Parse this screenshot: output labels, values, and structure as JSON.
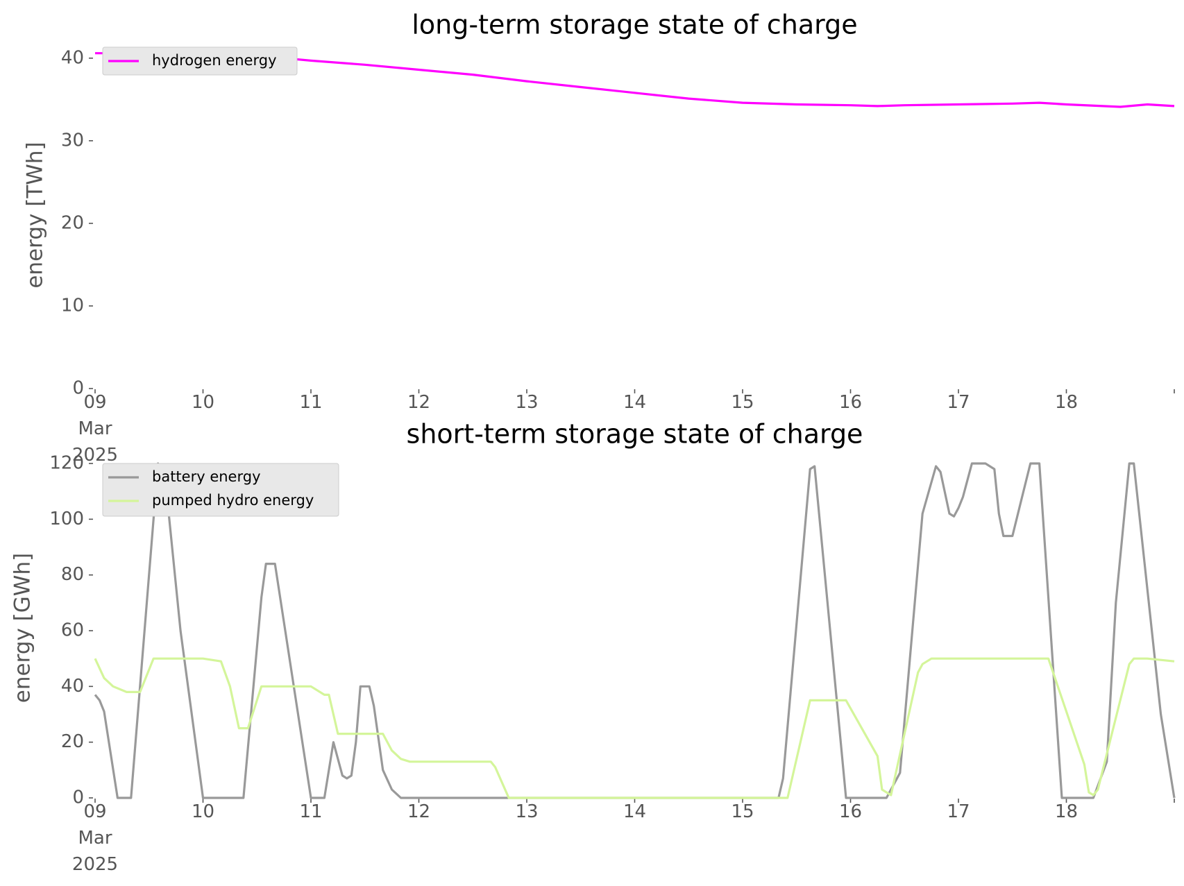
{
  "chart_data": [
    {
      "type": "line",
      "title": "long-term storage state of charge",
      "xlabel": "",
      "ylabel": "energy [TWh]",
      "xlim": [
        "2025-03-09T00:00",
        "2025-03-19T00:00"
      ],
      "ylim": [
        0,
        42
      ],
      "yticks": [
        0,
        10,
        20,
        30,
        40
      ],
      "xtick_labels": [
        "09\nMar\n2025",
        "10",
        "11",
        "12",
        "13",
        "14",
        "15",
        "16",
        "17",
        "18"
      ],
      "grid": false,
      "legend_position": "upper-left",
      "series": [
        {
          "name": "hydrogen energy",
          "color": "#ff00ff",
          "x": [
            "2025-03-09T00:00",
            "2025-03-09T12:00",
            "2025-03-10T00:00",
            "2025-03-10T12:00",
            "2025-03-11T00:00",
            "2025-03-11T12:00",
            "2025-03-12T00:00",
            "2025-03-12T12:00",
            "2025-03-13T00:00",
            "2025-03-13T12:00",
            "2025-03-14T00:00",
            "2025-03-14T12:00",
            "2025-03-15T00:00",
            "2025-03-15T12:00",
            "2025-03-16T00:00",
            "2025-03-16T06:00",
            "2025-03-16T12:00",
            "2025-03-17T00:00",
            "2025-03-17T12:00",
            "2025-03-17T18:00",
            "2025-03-18T00:00",
            "2025-03-18T12:00",
            "2025-03-18T18:00",
            "2025-03-19T00:00"
          ],
          "values": [
            40.6,
            40.6,
            40.6,
            40.3,
            39.7,
            39.2,
            38.6,
            38.0,
            37.2,
            36.5,
            35.8,
            35.1,
            34.6,
            34.4,
            34.3,
            34.2,
            34.3,
            34.4,
            34.5,
            34.6,
            34.4,
            34.1,
            34.4,
            34.2
          ]
        }
      ]
    },
    {
      "type": "line",
      "title": "short-term storage state of charge",
      "xlabel": "",
      "ylabel": "energy [GWh]",
      "xlim": [
        "2025-03-09T00:00",
        "2025-03-19T00:00"
      ],
      "ylim": [
        0,
        122
      ],
      "yticks": [
        0,
        20,
        40,
        60,
        80,
        100,
        120
      ],
      "xtick_labels": [
        "09\nMar\n2025",
        "10",
        "11",
        "12",
        "13",
        "14",
        "15",
        "16",
        "17",
        "18"
      ],
      "grid": false,
      "legend_position": "upper-left",
      "series": [
        {
          "name": "battery energy",
          "color": "#999999",
          "x": [
            "2025-03-09T00:00",
            "2025-03-09T01:00",
            "2025-03-09T02:00",
            "2025-03-09T05:00",
            "2025-03-09T08:00",
            "2025-03-09T14:00",
            "2025-03-09T16:00",
            "2025-03-09T19:00",
            "2025-03-10T00:00",
            "2025-03-10T09:00",
            "2025-03-10T13:00",
            "2025-03-10T14:00",
            "2025-03-10T16:00",
            "2025-03-11T00:00",
            "2025-03-11T03:00",
            "2025-03-11T05:00",
            "2025-03-11T07:00",
            "2025-03-11T08:00",
            "2025-03-11T09:00",
            "2025-03-11T10:00",
            "2025-03-11T11:00",
            "2025-03-11T13:00",
            "2025-03-11T14:00",
            "2025-03-11T16:00",
            "2025-03-11T18:00",
            "2025-03-11T20:00",
            "2025-03-11T22:00",
            "2025-03-12T00:00",
            "2025-03-15T08:00",
            "2025-03-15T09:00",
            "2025-03-15T15:00",
            "2025-03-15T16:00",
            "2025-03-15T23:00",
            "2025-03-16T08:00",
            "2025-03-16T11:00",
            "2025-03-16T16:00",
            "2025-03-16T19:00",
            "2025-03-16T20:00",
            "2025-03-16T22:00",
            "2025-03-16T23:00",
            "2025-03-17T00:00",
            "2025-03-17T01:00",
            "2025-03-17T03:00",
            "2025-03-17T04:00",
            "2025-03-17T06:00",
            "2025-03-17T08:00",
            "2025-03-17T09:00",
            "2025-03-17T10:00",
            "2025-03-17T12:00",
            "2025-03-17T14:00",
            "2025-03-17T16:00",
            "2025-03-17T18:00",
            "2025-03-17T23:00",
            "2025-03-18T01:00",
            "2025-03-18T06:00",
            "2025-03-18T09:00",
            "2025-03-18T11:00",
            "2025-03-18T14:00",
            "2025-03-18T15:00",
            "2025-03-18T21:00",
            "2025-03-19T00:00"
          ],
          "values": [
            37,
            35,
            31,
            0,
            0,
            120,
            108,
            60,
            0,
            0,
            72,
            84,
            84,
            0,
            0,
            20,
            8,
            7,
            8,
            20,
            40,
            40,
            33,
            10,
            3,
            0,
            0,
            0,
            0,
            7,
            118,
            119,
            0,
            0,
            9,
            102,
            119,
            117,
            102,
            101,
            104,
            108,
            120,
            120,
            120,
            118,
            102,
            94,
            94,
            107,
            120,
            120,
            0,
            0,
            0,
            13,
            70,
            120,
            120,
            30,
            0
          ]
        },
        {
          "name": "pumped hydro energy",
          "color": "#d4f59a",
          "x": [
            "2025-03-09T00:00",
            "2025-03-09T02:00",
            "2025-03-09T04:00",
            "2025-03-09T07:00",
            "2025-03-09T10:00",
            "2025-03-09T13:00",
            "2025-03-10T00:00",
            "2025-03-10T04:00",
            "2025-03-10T06:00",
            "2025-03-10T08:00",
            "2025-03-10T10:00",
            "2025-03-10T13:00",
            "2025-03-11T00:00",
            "2025-03-11T03:00",
            "2025-03-11T04:00",
            "2025-03-11T06:00",
            "2025-03-11T08:00",
            "2025-03-11T16:00",
            "2025-03-11T18:00",
            "2025-03-11T20:00",
            "2025-03-11T22:00",
            "2025-03-12T16:00",
            "2025-03-12T17:00",
            "2025-03-12T20:00",
            "2025-03-15T10:00",
            "2025-03-15T15:00",
            "2025-03-15T23:00",
            "2025-03-16T06:00",
            "2025-03-16T07:00",
            "2025-03-16T09:00",
            "2025-03-16T15:00",
            "2025-03-16T16:00",
            "2025-03-16T18:00",
            "2025-03-17T19:00",
            "2025-03-17T20:00",
            "2025-03-18T04:00",
            "2025-03-18T05:00",
            "2025-03-18T06:00",
            "2025-03-18T07:00",
            "2025-03-18T14:00",
            "2025-03-18T15:00",
            "2025-03-18T18:00",
            "2025-03-19T00:00"
          ],
          "values": [
            50,
            43,
            40,
            38,
            38,
            50,
            50,
            49,
            40,
            25,
            25,
            40,
            40,
            37,
            37,
            23,
            23,
            23,
            17,
            14,
            13,
            13,
            11,
            0,
            0,
            35,
            35,
            15,
            3,
            1,
            45,
            48,
            50,
            50,
            50,
            12,
            2,
            1,
            3,
            48,
            50,
            50,
            49
          ]
        }
      ]
    }
  ]
}
